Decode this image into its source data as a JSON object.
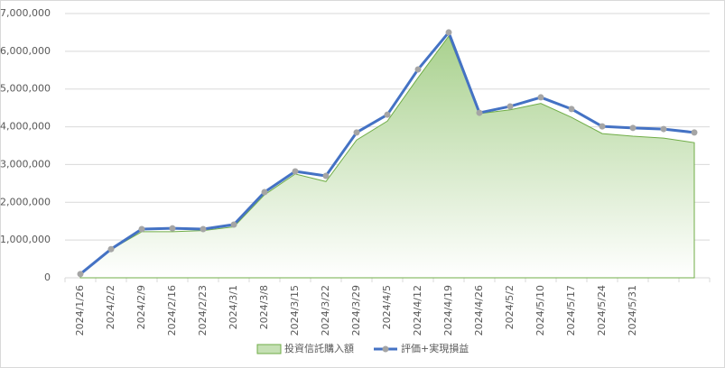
{
  "chart_data": {
    "type": "line",
    "categories": [
      "2024/1/26",
      "2024/2/2",
      "2024/2/9",
      "2024/2/16",
      "2024/2/23",
      "2024/3/1",
      "2024/3/8",
      "2024/3/15",
      "2024/3/22",
      "2024/3/29",
      "2024/4/5",
      "2024/4/12",
      "2024/4/19",
      "2024/4/26",
      "2024/5/2",
      "2024/5/10",
      "2024/5/17",
      "2024/5/24",
      "2024/5/31",
      null,
      null
    ],
    "series": [
      {
        "name": "投資信託購入額",
        "type": "area",
        "color": "#70ad47",
        "values": [
          100000,
          750000,
          1220000,
          1220000,
          1250000,
          1350000,
          2200000,
          2750000,
          2550000,
          3650000,
          4150000,
          5300000,
          6400000,
          4350000,
          4450000,
          4620000,
          4250000,
          3820000,
          3750000,
          3700000,
          3580000
        ]
      },
      {
        "name": "評価+実現損益",
        "type": "line",
        "color": "#4472c4",
        "marker_color": "#a5a5a5",
        "values": [
          100000,
          760000,
          1290000,
          1310000,
          1290000,
          1410000,
          2270000,
          2820000,
          2700000,
          3850000,
          4320000,
          5520000,
          6500000,
          4370000,
          4540000,
          4780000,
          4470000,
          4010000,
          3970000,
          3940000,
          3850000
        ]
      }
    ],
    "ylim": [
      0,
      7000000
    ],
    "yticks": [
      0,
      {
        "value": 1000000,
        "label": "1,000,000"
      },
      {
        "value": 2000000,
        "label": "2,000,000"
      },
      {
        "value": 3000000,
        "label": "3,000,000"
      },
      {
        "value": 4000000,
        "label": "4,000,000"
      },
      {
        "value": 5000000,
        "label": "5,000,000"
      },
      {
        "value": 6000000,
        "label": "6,000,000"
      },
      {
        "value": 7000000,
        "label": "7,000,000"
      }
    ],
    "grid": true,
    "legend": "bottom"
  }
}
